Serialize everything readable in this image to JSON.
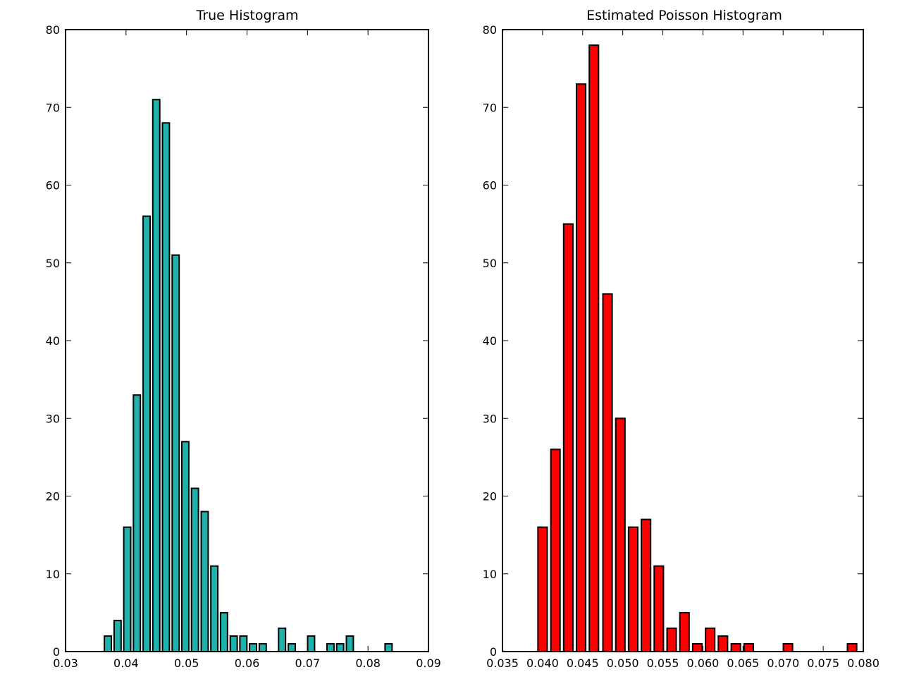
{
  "chart_data": [
    {
      "type": "bar",
      "title": "True Histogram",
      "xlabel": "",
      "ylabel": "",
      "xlim": [
        0.03,
        0.09
      ],
      "ylim": [
        0,
        80
      ],
      "grid": false,
      "color": "#20B2AA",
      "edge_color": "#000000",
      "x_ticks": [
        "0.03",
        "0.04",
        "0.05",
        "0.06",
        "0.07",
        "0.08",
        "0.09"
      ],
      "y_ticks": [
        "0",
        "10",
        "20",
        "30",
        "40",
        "50",
        "60",
        "70",
        "80"
      ],
      "bars": [
        {
          "x": 0.037,
          "value": 2
        },
        {
          "x": 0.0386,
          "value": 4
        },
        {
          "x": 0.0402,
          "value": 16
        },
        {
          "x": 0.0418,
          "value": 33
        },
        {
          "x": 0.0434,
          "value": 56
        },
        {
          "x": 0.045,
          "value": 71
        },
        {
          "x": 0.0466,
          "value": 68
        },
        {
          "x": 0.0482,
          "value": 51
        },
        {
          "x": 0.0498,
          "value": 27
        },
        {
          "x": 0.0514,
          "value": 21
        },
        {
          "x": 0.053,
          "value": 18
        },
        {
          "x": 0.0546,
          "value": 11
        },
        {
          "x": 0.0562,
          "value": 5
        },
        {
          "x": 0.0578,
          "value": 2
        },
        {
          "x": 0.0594,
          "value": 2
        },
        {
          "x": 0.061,
          "value": 1
        },
        {
          "x": 0.0626,
          "value": 1
        },
        {
          "x": 0.0658,
          "value": 3
        },
        {
          "x": 0.0674,
          "value": 1
        },
        {
          "x": 0.0706,
          "value": 2
        },
        {
          "x": 0.0738,
          "value": 1
        },
        {
          "x": 0.0754,
          "value": 1
        },
        {
          "x": 0.077,
          "value": 2
        },
        {
          "x": 0.0834,
          "value": 1
        }
      ]
    },
    {
      "type": "bar",
      "title": "Estimated Poisson Histogram",
      "xlabel": "",
      "ylabel": "",
      "xlim": [
        0.035,
        0.08
      ],
      "ylim": [
        0,
        80
      ],
      "grid": false,
      "color": "#FF0000",
      "edge_color": "#000000",
      "x_ticks": [
        "0.035",
        "0.040",
        "0.045",
        "0.050",
        "0.055",
        "0.060",
        "0.065",
        "0.070",
        "0.075",
        "0.080"
      ],
      "y_ticks": [
        "0",
        "10",
        "20",
        "30",
        "40",
        "50",
        "60",
        "70",
        "80"
      ],
      "bars": [
        {
          "x": 0.04,
          "value": 16
        },
        {
          "x": 0.0416,
          "value": 26
        },
        {
          "x": 0.0432,
          "value": 55
        },
        {
          "x": 0.0448,
          "value": 73
        },
        {
          "x": 0.0464,
          "value": 78
        },
        {
          "x": 0.0481,
          "value": 46
        },
        {
          "x": 0.0497,
          "value": 30
        },
        {
          "x": 0.0513,
          "value": 16
        },
        {
          "x": 0.0529,
          "value": 17
        },
        {
          "x": 0.0545,
          "value": 11
        },
        {
          "x": 0.0561,
          "value": 3
        },
        {
          "x": 0.0577,
          "value": 5
        },
        {
          "x": 0.0593,
          "value": 1
        },
        {
          "x": 0.0609,
          "value": 3
        },
        {
          "x": 0.0625,
          "value": 2
        },
        {
          "x": 0.0641,
          "value": 1
        },
        {
          "x": 0.0657,
          "value": 1
        },
        {
          "x": 0.0706,
          "value": 1
        },
        {
          "x": 0.0786,
          "value": 1
        }
      ]
    }
  ]
}
